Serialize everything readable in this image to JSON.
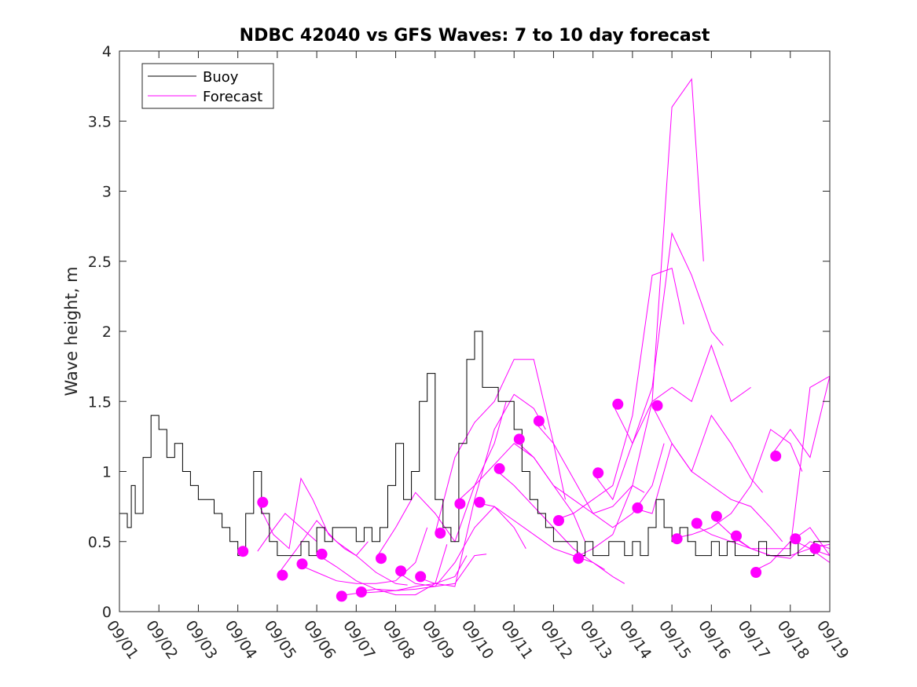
{
  "chart_data": {
    "type": "line",
    "title": "NDBC 42040 vs GFS Waves: 7 to 10 day forecast",
    "xlabel": "",
    "ylabel": "Wave height, m",
    "xlim": [
      0,
      18
    ],
    "ylim": [
      0,
      4
    ],
    "x_unit": "days since 09/01",
    "x_tick_values": [
      0,
      1,
      2,
      3,
      4,
      5,
      6,
      7,
      8,
      9,
      10,
      11,
      12,
      13,
      14,
      15,
      16,
      17,
      18
    ],
    "x_tick_labels": [
      "09/01",
      "09/02",
      "09/03",
      "09/04",
      "09/05",
      "09/06",
      "09/07",
      "09/08",
      "09/09",
      "09/10",
      "09/11",
      "09/12",
      "09/13",
      "09/14",
      "09/15",
      "09/16",
      "09/17",
      "09/18",
      "09/19"
    ],
    "y_tick_values": [
      0,
      0.5,
      1,
      1.5,
      2,
      2.5,
      3,
      3.5,
      4
    ],
    "y_tick_labels": [
      "0",
      "0.5",
      "1",
      "1.5",
      "2",
      "2.5",
      "3",
      "3.5",
      "4"
    ],
    "legend": {
      "location": "top-left",
      "entries": [
        {
          "label": "Buoy",
          "color": "#000000"
        },
        {
          "label": "Forecast",
          "color": "#ff00ff"
        }
      ]
    },
    "colors": {
      "buoy": "#000000",
      "forecast": "#ff00ff",
      "axes": "#262626"
    },
    "buoy": {
      "name": "Buoy",
      "x": [
        0,
        0.2,
        0.3,
        0.4,
        0.6,
        0.8,
        1.0,
        1.2,
        1.4,
        1.6,
        1.8,
        2.0,
        2.2,
        2.4,
        2.6,
        2.8,
        3.0,
        3.2,
        3.4,
        3.6,
        3.8,
        4.0,
        4.2,
        4.4,
        4.6,
        4.8,
        5.0,
        5.2,
        5.4,
        5.6,
        5.8,
        6.0,
        6.2,
        6.4,
        6.6,
        6.8,
        7.0,
        7.2,
        7.4,
        7.6,
        7.8,
        8.0,
        8.2,
        8.4,
        8.6,
        8.8,
        9.0,
        9.2,
        9.4,
        9.6,
        9.8,
        10.0,
        10.2,
        10.4,
        10.6,
        10.8,
        11.0,
        11.2,
        11.4,
        11.6,
        11.8,
        12.0,
        12.2,
        12.4,
        12.6,
        12.8,
        13.0,
        13.2,
        13.4,
        13.6,
        13.8,
        14.0,
        14.2,
        14.4,
        14.6,
        14.8,
        15.0,
        15.2,
        15.4,
        15.6,
        15.8,
        16.0,
        16.2,
        16.4,
        16.6,
        16.8,
        17.0,
        17.2,
        17.4,
        17.6,
        17.8,
        18.0
      ],
      "y": [
        0.7,
        0.6,
        0.9,
        0.7,
        1.1,
        1.4,
        1.3,
        1.1,
        1.2,
        1.0,
        0.9,
        0.8,
        0.8,
        0.7,
        0.6,
        0.5,
        0.4,
        0.7,
        1.0,
        0.7,
        0.5,
        0.4,
        0.4,
        0.4,
        0.5,
        0.4,
        0.6,
        0.5,
        0.6,
        0.6,
        0.6,
        0.5,
        0.6,
        0.5,
        0.6,
        0.9,
        1.2,
        0.8,
        1.0,
        1.5,
        1.7,
        0.8,
        0.6,
        0.5,
        1.2,
        1.8,
        2.0,
        1.6,
        1.6,
        1.5,
        1.5,
        1.3,
        1.0,
        0.8,
        0.7,
        0.6,
        0.5,
        0.5,
        0.5,
        0.4,
        0.5,
        0.4,
        0.4,
        0.5,
        0.5,
        0.4,
        0.5,
        0.4,
        0.6,
        0.8,
        0.6,
        0.5,
        0.6,
        0.5,
        0.4,
        0.4,
        0.5,
        0.4,
        0.5,
        0.4,
        0.4,
        0.4,
        0.5,
        0.4,
        0.4,
        0.4,
        0.5,
        0.4,
        0.4,
        0.5,
        0.5,
        0.5
      ]
    },
    "forecast_series": [
      {
        "x": [
          3.5,
          3.8,
          4.2,
          4.6,
          5.0
        ],
        "y": [
          0.43,
          0.55,
          0.7,
          0.6,
          0.5
        ]
      },
      {
        "x": [
          3.5,
          3.9,
          4.3,
          4.6,
          4.9,
          5.3,
          5.7,
          6.0,
          6.3
        ],
        "y": [
          0.78,
          0.55,
          0.45,
          0.95,
          0.8,
          0.55,
          0.45,
          0.4,
          0.5
        ]
      },
      {
        "x": [
          4.0,
          4.5,
          5.0,
          5.5,
          6.0,
          6.5,
          7.0,
          7.3
        ],
        "y": [
          0.26,
          0.45,
          0.65,
          0.5,
          0.4,
          0.28,
          0.2,
          0.19
        ]
      },
      {
        "x": [
          4.5,
          5.0,
          5.5,
          6.0,
          6.5,
          7.0,
          7.5,
          7.8
        ],
        "y": [
          0.34,
          0.28,
          0.22,
          0.2,
          0.2,
          0.22,
          0.35,
          0.6
        ]
      },
      {
        "x": [
          5.0,
          5.5,
          6.0,
          6.5,
          7.0,
          7.5,
          8.0,
          8.3
        ],
        "y": [
          0.41,
          0.32,
          0.22,
          0.16,
          0.12,
          0.12,
          0.2,
          0.48
        ]
      },
      {
        "x": [
          5.5,
          6.0,
          6.5,
          7.0,
          7.5,
          8.0,
          8.5,
          8.8
        ],
        "y": [
          0.11,
          0.13,
          0.14,
          0.15,
          0.18,
          0.2,
          0.25,
          0.4
        ]
      },
      {
        "x": [
          6.0,
          6.5,
          7.0,
          7.5,
          8.0,
          8.5,
          9.0,
          9.3
        ],
        "y": [
          0.14,
          0.16,
          0.15,
          0.16,
          0.18,
          0.2,
          0.4,
          0.41
        ]
      },
      {
        "x": [
          6.5,
          7.0,
          7.5,
          8.0,
          8.5,
          9.0,
          9.5,
          9.8
        ],
        "y": [
          0.38,
          0.6,
          0.85,
          0.7,
          0.5,
          0.9,
          1.2,
          1.5
        ]
      },
      {
        "x": [
          7.0,
          7.5,
          8.0,
          8.5,
          9.0,
          9.5,
          10.0,
          10.3
        ],
        "y": [
          0.29,
          0.2,
          0.18,
          0.35,
          0.6,
          0.75,
          0.6,
          0.45
        ]
      },
      {
        "x": [
          7.5,
          8.0,
          8.5,
          9.0,
          9.5,
          10.0,
          10.5,
          10.8
        ],
        "y": [
          0.25,
          0.2,
          0.18,
          0.8,
          1.3,
          1.55,
          1.45,
          1.3
        ]
      },
      {
        "x": [
          8.0,
          8.5,
          9.0,
          9.5,
          10.0,
          10.5,
          11.0,
          11.3
        ],
        "y": [
          0.56,
          1.1,
          1.35,
          1.5,
          1.8,
          1.8,
          1.2,
          0.8
        ]
      },
      {
        "x": [
          8.5,
          9.0,
          9.5,
          10.0,
          10.5,
          11.0,
          11.5,
          11.8
        ],
        "y": [
          0.77,
          0.9,
          1.05,
          1.2,
          1.1,
          0.9,
          0.7,
          0.5
        ]
      },
      {
        "x": [
          9.0,
          9.5,
          10.0,
          10.5,
          11.0,
          11.5,
          12.0,
          12.3
        ],
        "y": [
          0.78,
          0.75,
          0.65,
          0.55,
          0.45,
          0.4,
          0.35,
          0.3
        ]
      },
      {
        "x": [
          9.5,
          10.0,
          10.5,
          11.0,
          11.5,
          12.0,
          12.5,
          12.8
        ],
        "y": [
          1.02,
          0.9,
          0.75,
          0.6,
          0.45,
          0.35,
          0.25,
          0.2
        ]
      },
      {
        "x": [
          10.0,
          10.5,
          11.0,
          11.5,
          12.0,
          12.5,
          13.0,
          13.3
        ],
        "y": [
          1.23,
          1.1,
          0.9,
          0.8,
          0.7,
          0.75,
          0.9,
          0.85
        ]
      },
      {
        "x": [
          10.5,
          11.0,
          11.5,
          12.0,
          12.5,
          13.0,
          13.5,
          13.8
        ],
        "y": [
          1.36,
          1.2,
          0.95,
          0.7,
          0.6,
          0.7,
          0.9,
          1.2
        ]
      },
      {
        "x": [
          11.0,
          11.5,
          12.0,
          12.5,
          13.0,
          13.5,
          14.0,
          14.3
        ],
        "y": [
          0.65,
          0.7,
          0.8,
          0.9,
          1.4,
          2.4,
          2.45,
          2.05
        ]
      },
      {
        "x": [
          11.5,
          12.0,
          12.5,
          13.0,
          13.5,
          14.0,
          14.5,
          14.8
        ],
        "y": [
          0.38,
          0.45,
          0.55,
          0.9,
          1.5,
          3.6,
          3.8,
          2.5
        ]
      },
      {
        "x": [
          12.0,
          12.5,
          13.0,
          13.5,
          14.0,
          14.5,
          15.0,
          15.3
        ],
        "y": [
          0.99,
          0.8,
          1.2,
          1.6,
          2.7,
          2.4,
          2.0,
          1.9
        ]
      },
      {
        "x": [
          12.5,
          13.0,
          13.5,
          14.0,
          14.5,
          15.0,
          15.5,
          16.0
        ],
        "y": [
          1.48,
          1.2,
          1.5,
          1.6,
          1.5,
          1.9,
          1.5,
          1.6
        ]
      },
      {
        "x": [
          13.0,
          13.5,
          14.0,
          14.5,
          15.0,
          15.5,
          16.0,
          16.3
        ],
        "y": [
          0.74,
          0.7,
          1.2,
          1.0,
          1.4,
          1.2,
          0.95,
          0.85
        ]
      },
      {
        "x": [
          13.5,
          14.0,
          14.5,
          15.0,
          15.5,
          16.0,
          16.5,
          16.8
        ],
        "y": [
          1.47,
          1.2,
          1.0,
          0.9,
          0.8,
          0.75,
          0.6,
          0.5
        ]
      },
      {
        "x": [
          14.0,
          14.5,
          15.0,
          15.5,
          16.0,
          16.5,
          17.0,
          17.3
        ],
        "y": [
          0.52,
          0.55,
          0.6,
          0.7,
          0.9,
          1.3,
          1.2,
          1.0
        ]
      },
      {
        "x": [
          14.5,
          15.0,
          15.5,
          16.0,
          16.5,
          17.0,
          17.5,
          18.0
        ],
        "y": [
          0.63,
          0.55,
          0.5,
          0.45,
          0.45,
          0.45,
          1.6,
          1.68
        ]
      },
      {
        "x": [
          15.0,
          15.5,
          16.0,
          16.5,
          17.0,
          17.5,
          18.0
        ],
        "y": [
          0.68,
          0.55,
          0.45,
          0.4,
          0.38,
          0.5,
          0.45
        ]
      },
      {
        "x": [
          15.5,
          16.0,
          16.5,
          17.0,
          17.5,
          18.0
        ],
        "y": [
          0.54,
          0.45,
          0.4,
          0.4,
          0.45,
          0.48
        ]
      },
      {
        "x": [
          16.0,
          16.5,
          17.0,
          17.5,
          18.0
        ],
        "y": [
          0.28,
          0.35,
          0.5,
          0.6,
          0.4
        ]
      },
      {
        "x": [
          16.5,
          17.0,
          17.5,
          18.0
        ],
        "y": [
          1.11,
          1.3,
          1.1,
          1.68
        ]
      },
      {
        "x": [
          17.0,
          17.5,
          18.0
        ],
        "y": [
          0.52,
          0.45,
          0.4
        ]
      },
      {
        "x": [
          17.5,
          18.0
        ],
        "y": [
          0.45,
          0.35
        ]
      }
    ],
    "forecast_markers": {
      "name": "Forecast start",
      "x": [
        3.13,
        3.63,
        4.13,
        4.63,
        5.13,
        5.63,
        6.13,
        6.63,
        7.13,
        7.63,
        8.13,
        8.63,
        9.13,
        9.63,
        10.13,
        10.63,
        11.13,
        11.63,
        12.13,
        12.63,
        13.13,
        13.63,
        14.13,
        14.63,
        15.13,
        15.63,
        16.13,
        16.63,
        17.13,
        17.63
      ],
      "y": [
        0.43,
        0.78,
        0.26,
        0.34,
        0.41,
        0.11,
        0.14,
        0.38,
        0.29,
        0.25,
        0.56,
        0.77,
        0.78,
        1.02,
        1.23,
        1.36,
        0.65,
        0.38,
        0.99,
        1.48,
        0.74,
        1.47,
        0.52,
        0.63,
        0.68,
        0.54,
        0.28,
        1.11,
        0.52,
        0.45
      ]
    }
  }
}
